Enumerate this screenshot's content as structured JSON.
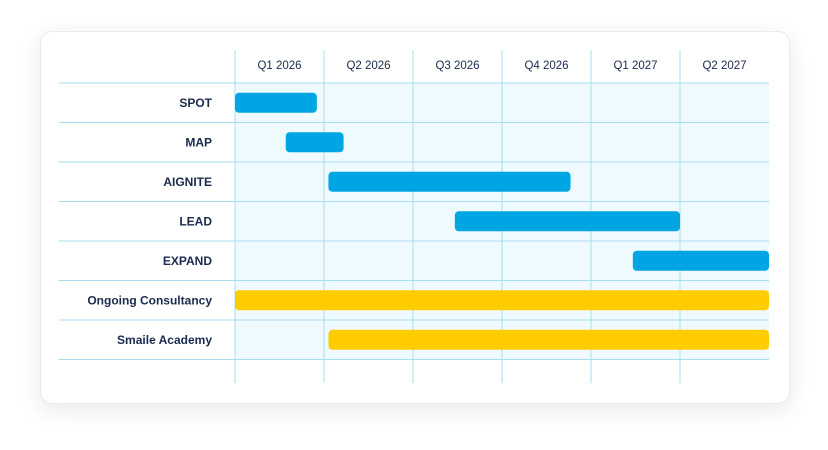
{
  "chart_data": {
    "type": "gantt",
    "periods": [
      "Q1 2026",
      "Q2 2026",
      "Q3 2026",
      "Q4 2026",
      "Q1 2027",
      "Q2 2027"
    ],
    "tasks": [
      {
        "label": "SPOT",
        "start": 0.0,
        "end": 0.92,
        "color": "#00a6e4"
      },
      {
        "label": "MAP",
        "start": 0.57,
        "end": 1.22,
        "color": "#00a6e4"
      },
      {
        "label": "AIGNITE",
        "start": 1.05,
        "end": 3.77,
        "color": "#00a6e4"
      },
      {
        "label": "LEAD",
        "start": 2.47,
        "end": 5.0,
        "color": "#00a6e4"
      },
      {
        "label": "EXPAND",
        "start": 4.47,
        "end": 6.0,
        "color": "#00a6e4"
      },
      {
        "label": "Ongoing Consultancy",
        "start": 0.0,
        "end": 6.0,
        "color": "#ffcc00"
      },
      {
        "label": "Smaile Academy",
        "start": 1.05,
        "end": 6.0,
        "color": "#ffcc00"
      }
    ],
    "grid": true
  },
  "colors": {
    "grid_line": "#a9dcef",
    "plot_background": "#eefafd",
    "text": "#1b2b4d"
  }
}
